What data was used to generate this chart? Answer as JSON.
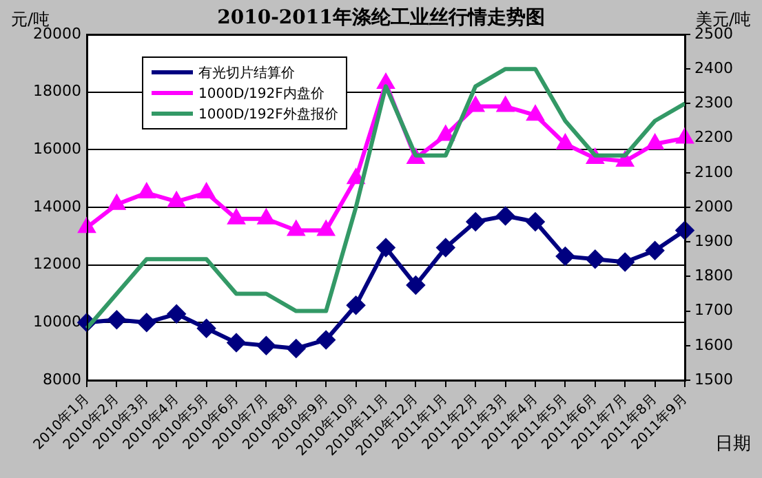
{
  "chart_data": {
    "type": "line",
    "title": "2010-2011年涤纶工业丝行情走势图",
    "xlabel": "日期",
    "ylabel": "元/吨",
    "y2label": "美元/吨",
    "categories": [
      "2010年1月",
      "2010年2月",
      "2010年3月",
      "2010年4月",
      "2010年5月",
      "2010年6月",
      "2010年7月",
      "2010年8月",
      "2010年9月",
      "2010年10月",
      "2010年11月",
      "2010年12月",
      "2011年1月",
      "2011年2月",
      "2011年3月",
      "2011年4月",
      "2011年5月",
      "2011年6月",
      "2011年7月",
      "2011年8月",
      "2011年9月"
    ],
    "series": [
      {
        "name": "有光切片结算价",
        "color": "#000080",
        "marker": "diamond",
        "values": [
          10000,
          10100,
          10000,
          10300,
          9800,
          9300,
          9200,
          9100,
          9400,
          10600,
          12600,
          11300,
          12600,
          13500,
          13700,
          13500,
          12300,
          12200,
          12100,
          12500,
          13200
        ]
      },
      {
        "name": "1000D/192F内盘价",
        "color": "#ff00ff",
        "marker": "triangle",
        "values": [
          13300,
          14100,
          14500,
          14200,
          14500,
          13600,
          13600,
          13200,
          13200,
          15000,
          18300,
          15700,
          16500,
          17500,
          17500,
          17200,
          16200,
          15700,
          15600,
          16200,
          16400
        ]
      },
      {
        "name": "1000D/192F外盘报价",
        "color": "#339966",
        "marker": "none",
        "axis": "y2",
        "values": [
          1650,
          1750,
          1850,
          1850,
          1850,
          1750,
          1750,
          1700,
          1700,
          2000,
          2350,
          2150,
          2150,
          2350,
          2400,
          2400,
          2250,
          2150,
          2150,
          2250,
          2300
        ]
      }
    ],
    "ylim": [
      8000,
      20000
    ],
    "yticks": [
      8000,
      10000,
      12000,
      14000,
      16000,
      18000,
      20000
    ],
    "y2lim": [
      1500,
      2500
    ],
    "y2ticks": [
      1500,
      1600,
      1700,
      1800,
      1900,
      2000,
      2100,
      2200,
      2300,
      2400,
      2500
    ],
    "grid": "y",
    "legend": "top left",
    "line_style": "solid"
  }
}
